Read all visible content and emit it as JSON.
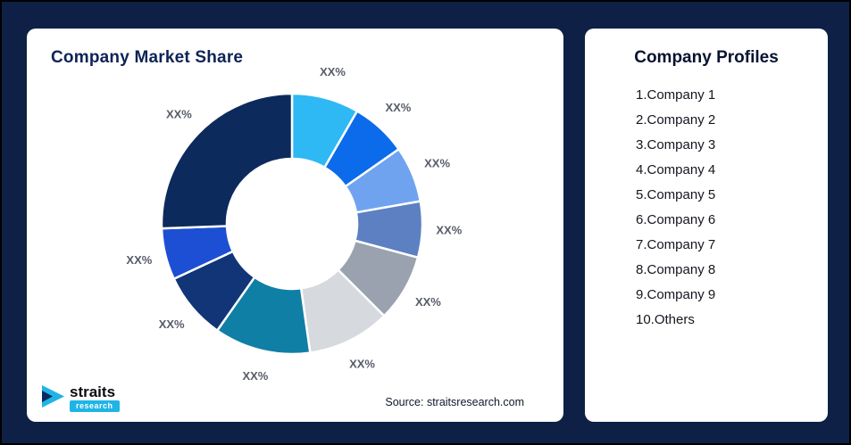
{
  "page": {
    "background_color": "#0E2045",
    "card_color": "#FFFFFF"
  },
  "market_share_card": {
    "title": "Company Market Share",
    "source": "Source: straitsresearch.com"
  },
  "logo": {
    "brand": "straits",
    "sub": "research"
  },
  "profiles_card": {
    "title": "Company Profiles",
    "items": [
      "1.Company 1",
      "2.Company 2",
      "3.Company 3",
      "4.Company 4",
      "5.Company 5",
      "6.Company 6",
      "7.Company 7",
      "8.Company 8",
      "9.Company 9",
      "10.Others"
    ]
  },
  "chart_data": {
    "type": "pie",
    "subtype": "donut",
    "title": "Company Market Share",
    "legend_position": "none",
    "start_angle_deg": 0,
    "direction": "clockwise",
    "segments": [
      {
        "label": "XX%",
        "sweep_deg": 30,
        "color": "#2EB8F4"
      },
      {
        "label": "XX%",
        "sweep_deg": 25,
        "color": "#0C6BEA"
      },
      {
        "label": "XX%",
        "sweep_deg": 25,
        "color": "#6FA3F0"
      },
      {
        "label": "XX%",
        "sweep_deg": 25,
        "color": "#5C80C2"
      },
      {
        "label": "XX%",
        "sweep_deg": 30,
        "color": "#99A2AE"
      },
      {
        "label": "XX%",
        "sweep_deg": 37,
        "color": "#D6D9DD"
      },
      {
        "label": "XX%",
        "sweep_deg": 43,
        "color": "#0F7FA5"
      },
      {
        "label": "XX%",
        "sweep_deg": 30,
        "color": "#123577"
      },
      {
        "label": "XX%",
        "sweep_deg": 23,
        "color": "#1D4FD4"
      },
      {
        "label": "XX%",
        "sweep_deg": 92,
        "color": "#0D2A5C"
      }
    ]
  }
}
